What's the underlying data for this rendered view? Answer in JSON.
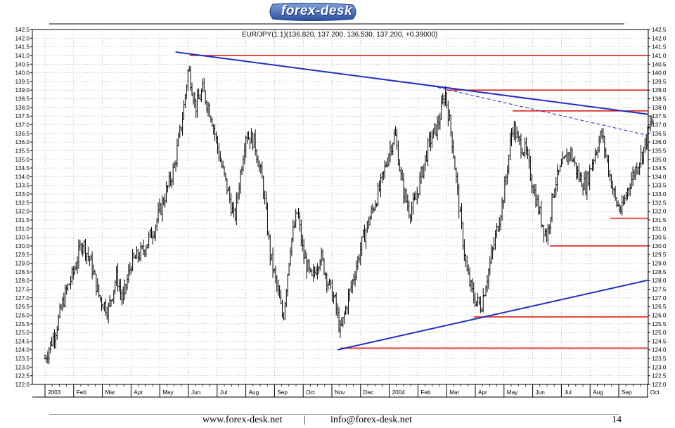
{
  "header": {
    "logo_text": "forex-desk",
    "chart_title": "EUR/JPY(1:1)(136.820, 137.200, 136.530, 137.200, +0.39000)"
  },
  "footer": {
    "website": "www.forex-desk.net",
    "separator": "|",
    "email": "info@forex-desk.net",
    "page_number": "14"
  },
  "chart_data": {
    "type": "ohlc",
    "title": "EUR/JPY(1:1)(136.820, 137.200, 136.530, 137.200, +0.39000)",
    "symbol": "EUR/JPY",
    "ylim": [
      122.0,
      142.5
    ],
    "y_ticks": [
      "142.5",
      "142.0",
      "141.5",
      "141.0",
      "140.5",
      "140.0",
      "139.5",
      "139.0",
      "138.5",
      "138.0",
      "137.5",
      "137.0",
      "136.5",
      "136.0",
      "135.5",
      "135.0",
      "134.5",
      "134.0",
      "133.5",
      "133.0",
      "132.5",
      "132.0",
      "131.5",
      "131.0",
      "130.5",
      "130.0",
      "129.5",
      "129.0",
      "128.5",
      "128.0",
      "127.5",
      "127.0",
      "126.5",
      "126.0",
      "125.5",
      "125.0",
      "124.5",
      "124.0",
      "123.5",
      "123.0",
      "122.5",
      "122.0"
    ],
    "x_ticks": [
      "2003",
      "Feb",
      "Mar",
      "Apr",
      "May",
      "Jun",
      "Jul",
      "Aug",
      "Sep",
      "Oct",
      "Nov",
      "Dec",
      "2004",
      "Feb",
      "Mar",
      "Apr",
      "May",
      "Jun",
      "Jul",
      "Aug",
      "Sep",
      "Oct"
    ],
    "price_path": [
      {
        "t": 0.0,
        "v": 123.5
      },
      {
        "t": 0.35,
        "v": 125.0
      },
      {
        "t": 0.7,
        "v": 127.2
      },
      {
        "t": 1.0,
        "v": 128.5
      },
      {
        "t": 1.3,
        "v": 130.3
      },
      {
        "t": 1.6,
        "v": 129.0
      },
      {
        "t": 1.9,
        "v": 127.0
      },
      {
        "t": 2.2,
        "v": 126.3
      },
      {
        "t": 2.5,
        "v": 128.3
      },
      {
        "t": 2.7,
        "v": 126.8
      },
      {
        "t": 3.0,
        "v": 129.0
      },
      {
        "t": 3.4,
        "v": 129.7
      },
      {
        "t": 3.8,
        "v": 131.0
      },
      {
        "t": 4.1,
        "v": 132.5
      },
      {
        "t": 4.5,
        "v": 134.5
      },
      {
        "t": 4.8,
        "v": 137.5
      },
      {
        "t": 5.0,
        "v": 140.3
      },
      {
        "t": 5.25,
        "v": 138.0
      },
      {
        "t": 5.5,
        "v": 139.0
      },
      {
        "t": 5.8,
        "v": 137.5
      },
      {
        "t": 6.1,
        "v": 135.0
      },
      {
        "t": 6.4,
        "v": 133.0
      },
      {
        "t": 6.6,
        "v": 131.5
      },
      {
        "t": 6.8,
        "v": 134.0
      },
      {
        "t": 7.0,
        "v": 136.5
      },
      {
        "t": 7.3,
        "v": 136.0
      },
      {
        "t": 7.6,
        "v": 133.5
      },
      {
        "t": 7.85,
        "v": 129.5
      },
      {
        "t": 8.1,
        "v": 127.5
      },
      {
        "t": 8.3,
        "v": 125.8
      },
      {
        "t": 8.55,
        "v": 130.0
      },
      {
        "t": 8.8,
        "v": 132.0
      },
      {
        "t": 9.0,
        "v": 129.5
      },
      {
        "t": 9.3,
        "v": 128.0
      },
      {
        "t": 9.6,
        "v": 129.5
      },
      {
        "t": 9.85,
        "v": 128.0
      },
      {
        "t": 10.1,
        "v": 126.8
      },
      {
        "t": 10.3,
        "v": 125.0
      },
      {
        "t": 10.5,
        "v": 126.5
      },
      {
        "t": 10.8,
        "v": 128.5
      },
      {
        "t": 11.1,
        "v": 130.5
      },
      {
        "t": 11.4,
        "v": 132.0
      },
      {
        "t": 11.7,
        "v": 133.5
      },
      {
        "t": 12.0,
        "v": 135.5
      },
      {
        "t": 12.2,
        "v": 136.5
      },
      {
        "t": 12.45,
        "v": 133.5
      },
      {
        "t": 12.7,
        "v": 132.0
      },
      {
        "t": 12.9,
        "v": 132.5
      },
      {
        "t": 13.1,
        "v": 134.0
      },
      {
        "t": 13.4,
        "v": 136.0
      },
      {
        "t": 13.7,
        "v": 137.0
      },
      {
        "t": 13.95,
        "v": 138.9
      },
      {
        "t": 14.2,
        "v": 136.0
      },
      {
        "t": 14.45,
        "v": 132.0
      },
      {
        "t": 14.7,
        "v": 128.5
      },
      {
        "t": 14.95,
        "v": 127.0
      },
      {
        "t": 15.2,
        "v": 126.5
      },
      {
        "t": 15.45,
        "v": 128.5
      },
      {
        "t": 15.7,
        "v": 130.5
      },
      {
        "t": 16.0,
        "v": 133.0
      },
      {
        "t": 16.3,
        "v": 137.0
      },
      {
        "t": 16.5,
        "v": 136.0
      },
      {
        "t": 16.75,
        "v": 135.5
      },
      {
        "t": 17.0,
        "v": 133.5
      },
      {
        "t": 17.3,
        "v": 131.5
      },
      {
        "t": 17.5,
        "v": 130.5
      },
      {
        "t": 17.75,
        "v": 133.5
      },
      {
        "t": 18.0,
        "v": 134.5
      },
      {
        "t": 18.3,
        "v": 135.5
      },
      {
        "t": 18.6,
        "v": 134.0
      },
      {
        "t": 18.85,
        "v": 133.5
      },
      {
        "t": 19.1,
        "v": 135.0
      },
      {
        "t": 19.4,
        "v": 136.5
      },
      {
        "t": 19.7,
        "v": 134.0
      },
      {
        "t": 19.9,
        "v": 132.5
      },
      {
        "t": 20.1,
        "v": 132.0
      },
      {
        "t": 20.35,
        "v": 133.5
      },
      {
        "t": 20.6,
        "v": 134.5
      },
      {
        "t": 20.85,
        "v": 135.5
      },
      {
        "t": 21.1,
        "v": 137.0
      },
      {
        "t": 21.2,
        "v": 137.2
      }
    ],
    "trendlines": [
      {
        "name": "resistance",
        "color": "#1f2fbf",
        "style": "solid",
        "start": {
          "t": 4.55,
          "v": 141.2
        },
        "end": {
          "t": 21.5,
          "v": 137.5
        }
      },
      {
        "name": "support",
        "color": "#1f2fbf",
        "style": "solid",
        "start": {
          "t": 10.2,
          "v": 124.0
        },
        "end": {
          "t": 21.5,
          "v": 128.2
        }
      },
      {
        "name": "dashed-projection",
        "color": "#1f2fbf",
        "style": "dashed",
        "start": {
          "t": 13.3,
          "v": 139.3
        },
        "end": {
          "t": 21.5,
          "v": 136.2
        }
      }
    ],
    "horizontal_levels": [
      {
        "v": 141.0,
        "from_t": 5.05
      },
      {
        "v": 139.0,
        "from_t": 13.95
      },
      {
        "v": 137.8,
        "from_t": 16.3
      },
      {
        "v": 131.6,
        "from_t": 19.7
      },
      {
        "v": 130.0,
        "from_t": 17.6
      },
      {
        "v": 125.9,
        "from_t": 14.95
      },
      {
        "v": 124.1,
        "from_t": 10.3
      }
    ],
    "colors": {
      "price": "#000000",
      "trendline": "#1f2fbf",
      "level": "#e0201a",
      "grid": "#9a9a9a"
    },
    "grid": true
  }
}
